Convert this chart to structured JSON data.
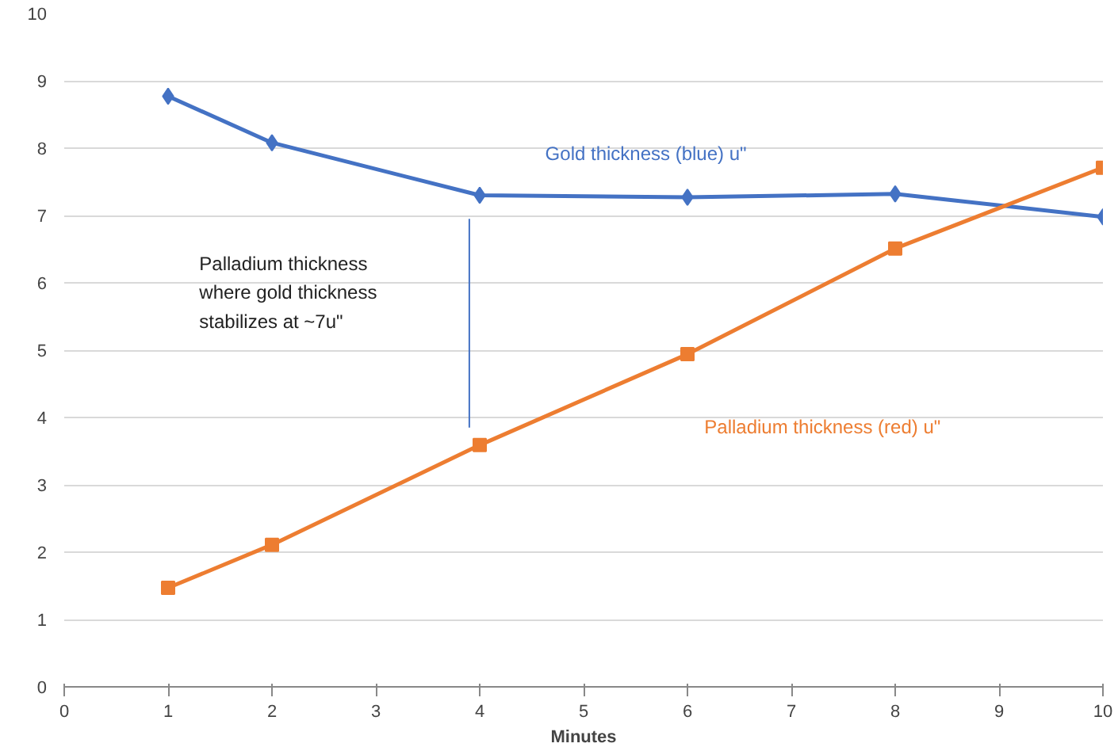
{
  "chart_data": {
    "type": "line",
    "xlabel": "Minutes",
    "x": [
      1,
      2,
      4,
      6,
      8,
      10
    ],
    "xlim": [
      0,
      10
    ],
    "xticks": [
      0,
      1,
      2,
      3,
      4,
      5,
      6,
      7,
      8,
      9,
      10
    ],
    "ylim": [
      0,
      10
    ],
    "yticks": [
      0,
      1,
      2,
      3,
      4,
      5,
      6,
      7,
      8,
      9,
      10
    ],
    "grid": "y",
    "series": [
      {
        "name": "Gold thickness (blue) u\"",
        "color": "#4472c4",
        "marker": "diamond",
        "values": [
          8.77,
          8.08,
          7.3,
          7.27,
          7.32,
          6.98
        ]
      },
      {
        "name": "Palladium thickness (red) u\"",
        "color": "#ed7d31",
        "marker": "square",
        "values": [
          1.47,
          2.11,
          3.59,
          4.94,
          6.51,
          7.71
        ]
      },
      {
        "color": "#4472c4",
        "x": [
          3.9,
          3.9
        ],
        "values": [
          6.95,
          3.85
        ]
      }
    ],
    "annotations": [
      "Palladium thickness\nwhere gold thickness\nstabilizes at ~7u\""
    ]
  }
}
